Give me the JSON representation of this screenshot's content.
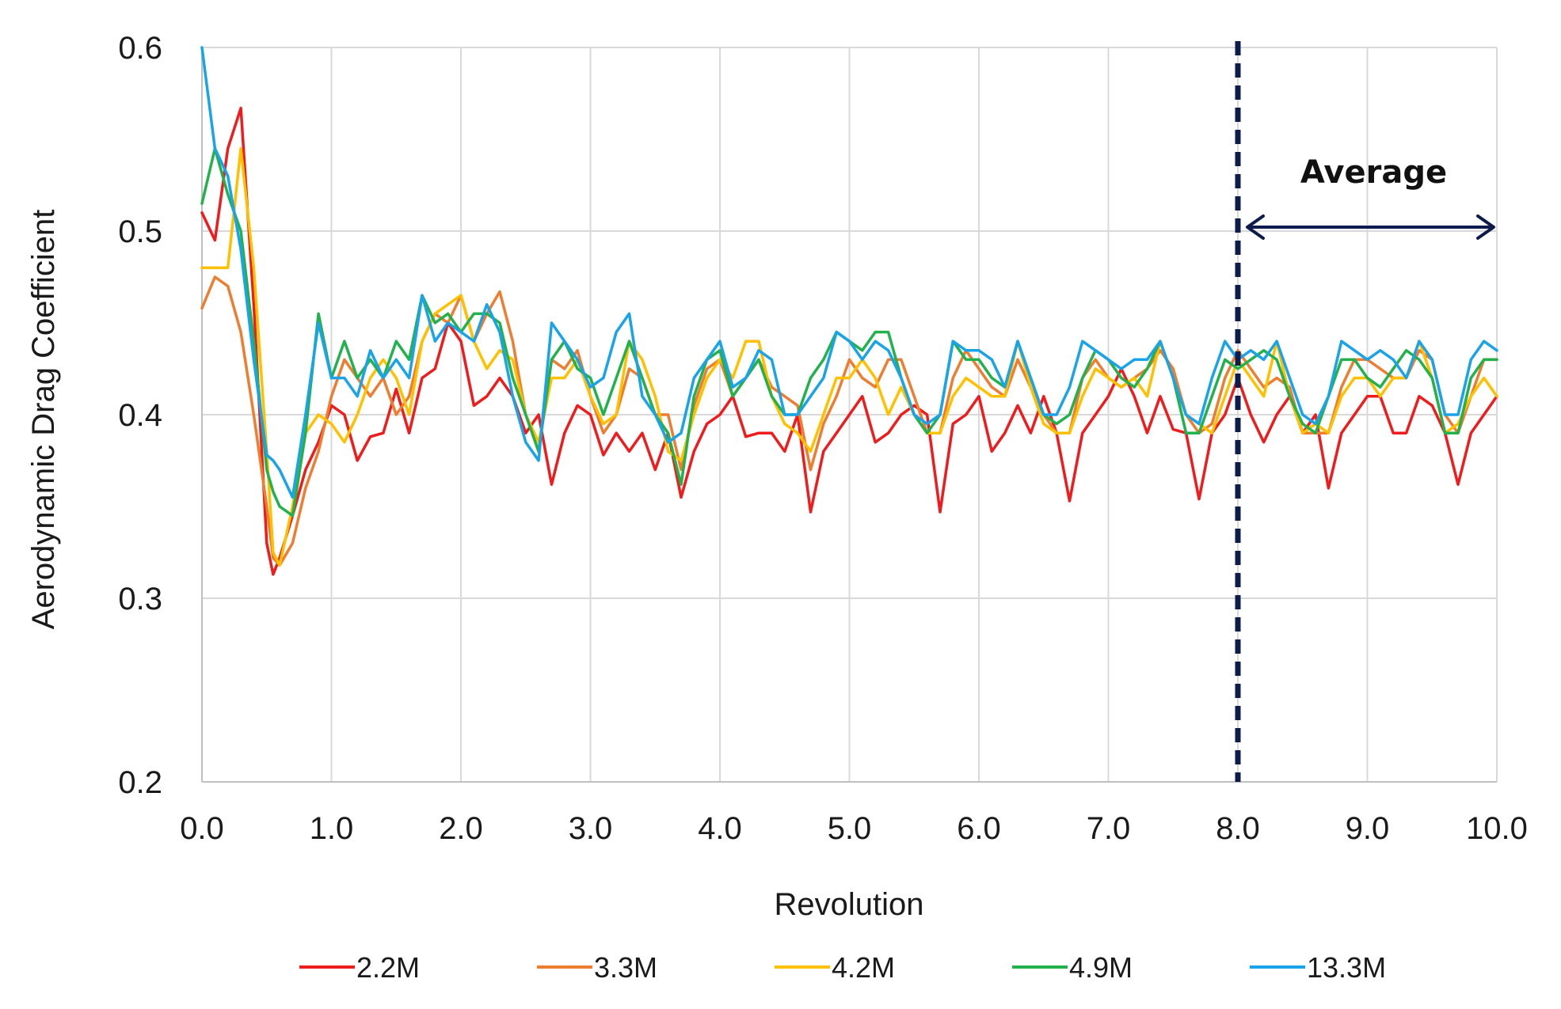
{
  "chart_data": {
    "type": "line",
    "title": "",
    "xlabel": "Revolution",
    "ylabel": "Aerodynamic Drag Coefficient",
    "xlim": [
      0,
      10
    ],
    "ylim": [
      0.2,
      0.6
    ],
    "x_ticks": [
      0,
      1,
      2,
      3,
      4,
      5,
      6,
      7,
      8,
      9,
      10
    ],
    "x_tick_labels": [
      "0.0",
      "1.0",
      "2.0",
      "3.0",
      "4.0",
      "5.0",
      "6.0",
      "7.0",
      "8.0",
      "9.0",
      "10.0"
    ],
    "y_ticks": [
      0.2,
      0.3,
      0.4,
      0.5,
      0.6
    ],
    "y_tick_labels": [
      "0.2",
      "0.3",
      "0.4",
      "0.5",
      "0.6"
    ],
    "grid": true,
    "legend_position": "bottom",
    "annotation": {
      "label": "Average",
      "vline_x": 8.0,
      "range": [
        8.0,
        10.0
      ],
      "color": "#0d1b4d"
    },
    "x": [
      0.0,
      0.1,
      0.2,
      0.3,
      0.4,
      0.5,
      0.55,
      0.6,
      0.7,
      0.8,
      0.9,
      1.0,
      1.1,
      1.2,
      1.3,
      1.4,
      1.5,
      1.6,
      1.7,
      1.8,
      1.9,
      2.0,
      2.1,
      2.2,
      2.3,
      2.4,
      2.5,
      2.6,
      2.7,
      2.8,
      2.9,
      3.0,
      3.1,
      3.2,
      3.3,
      3.4,
      3.5,
      3.6,
      3.7,
      3.8,
      3.9,
      4.0,
      4.1,
      4.2,
      4.3,
      4.4,
      4.5,
      4.6,
      4.7,
      4.8,
      4.9,
      5.0,
      5.1,
      5.2,
      5.3,
      5.4,
      5.5,
      5.6,
      5.7,
      5.8,
      5.9,
      6.0,
      6.1,
      6.2,
      6.3,
      6.4,
      6.5,
      6.6,
      6.7,
      6.8,
      6.9,
      7.0,
      7.1,
      7.2,
      7.3,
      7.4,
      7.5,
      7.6,
      7.7,
      7.8,
      7.9,
      8.0,
      8.1,
      8.2,
      8.3,
      8.4,
      8.5,
      8.6,
      8.7,
      8.8,
      8.9,
      9.0,
      9.1,
      9.2,
      9.3,
      9.4,
      9.5,
      9.6,
      9.7,
      9.8,
      9.9,
      10.0
    ],
    "series": [
      {
        "name": "2.2M",
        "color": "#ee1c1c",
        "values": [
          0.51,
          0.495,
          0.545,
          0.567,
          0.46,
          0.33,
          0.313,
          0.322,
          0.345,
          0.37,
          0.385,
          0.405,
          0.4,
          0.375,
          0.388,
          0.39,
          0.414,
          0.39,
          0.42,
          0.425,
          0.45,
          0.44,
          0.405,
          0.41,
          0.42,
          0.41,
          0.39,
          0.4,
          0.362,
          0.39,
          0.405,
          0.4,
          0.378,
          0.39,
          0.38,
          0.39,
          0.37,
          0.39,
          0.355,
          0.38,
          0.395,
          0.4,
          0.41,
          0.388,
          0.39,
          0.39,
          0.38,
          0.4,
          0.347,
          0.38,
          0.39,
          0.4,
          0.41,
          0.385,
          0.39,
          0.4,
          0.405,
          0.4,
          0.347,
          0.395,
          0.4,
          0.41,
          0.38,
          0.39,
          0.405,
          0.39,
          0.41,
          0.39,
          0.353,
          0.39,
          0.4,
          0.41,
          0.425,
          0.41,
          0.39,
          0.41,
          0.392,
          0.39,
          0.354,
          0.39,
          0.4,
          0.42,
          0.4,
          0.385,
          0.4,
          0.41,
          0.39,
          0.4,
          0.36,
          0.39,
          0.4,
          0.41,
          0.41,
          0.39,
          0.39,
          0.41,
          0.405,
          0.39,
          0.362,
          0.39,
          0.4,
          0.41
        ]
      },
      {
        "name": "3.3M",
        "color": "#ed7d31",
        "values": [
          0.458,
          0.475,
          0.47,
          0.445,
          0.4,
          0.35,
          0.322,
          0.318,
          0.33,
          0.36,
          0.38,
          0.41,
          0.43,
          0.42,
          0.41,
          0.42,
          0.4,
          0.41,
          0.44,
          0.455,
          0.45,
          0.465,
          0.44,
          0.455,
          0.467,
          0.44,
          0.4,
          0.38,
          0.43,
          0.425,
          0.435,
          0.41,
          0.39,
          0.4,
          0.425,
          0.42,
          0.4,
          0.4,
          0.37,
          0.405,
          0.425,
          0.43,
          0.41,
          0.42,
          0.43,
          0.415,
          0.41,
          0.405,
          0.37,
          0.395,
          0.41,
          0.43,
          0.42,
          0.415,
          0.43,
          0.43,
          0.41,
          0.39,
          0.39,
          0.42,
          0.435,
          0.425,
          0.415,
          0.41,
          0.43,
          0.415,
          0.4,
          0.39,
          0.39,
          0.42,
          0.43,
          0.42,
          0.415,
          0.42,
          0.425,
          0.435,
          0.425,
          0.4,
          0.39,
          0.395,
          0.42,
          0.435,
          0.425,
          0.415,
          0.42,
          0.415,
          0.39,
          0.39,
          0.39,
          0.415,
          0.43,
          0.43,
          0.425,
          0.42,
          0.42,
          0.435,
          0.43,
          0.4,
          0.39,
          0.41,
          0.43,
          0.43
        ]
      },
      {
        "name": "4.2M",
        "color": "#ffc000",
        "values": [
          0.48,
          0.48,
          0.48,
          0.545,
          0.48,
          0.38,
          0.325,
          0.318,
          0.35,
          0.39,
          0.4,
          0.395,
          0.385,
          0.4,
          0.42,
          0.43,
          0.42,
          0.4,
          0.44,
          0.455,
          0.46,
          0.465,
          0.44,
          0.425,
          0.435,
          0.43,
          0.4,
          0.385,
          0.42,
          0.42,
          0.43,
          0.41,
          0.395,
          0.4,
          0.44,
          0.43,
          0.41,
          0.38,
          0.375,
          0.4,
          0.42,
          0.43,
          0.42,
          0.44,
          0.44,
          0.41,
          0.395,
          0.39,
          0.38,
          0.4,
          0.42,
          0.42,
          0.43,
          0.42,
          0.4,
          0.415,
          0.4,
          0.39,
          0.39,
          0.41,
          0.42,
          0.415,
          0.41,
          0.41,
          0.44,
          0.415,
          0.395,
          0.39,
          0.39,
          0.41,
          0.425,
          0.42,
          0.415,
          0.42,
          0.41,
          0.44,
          0.42,
          0.4,
          0.395,
          0.39,
          0.41,
          0.43,
          0.42,
          0.41,
          0.44,
          0.41,
          0.39,
          0.395,
          0.39,
          0.41,
          0.42,
          0.42,
          0.41,
          0.42,
          0.42,
          0.44,
          0.42,
          0.39,
          0.395,
          0.41,
          0.42,
          0.41
        ]
      },
      {
        "name": "4.9M",
        "color": "#22b14c",
        "values": [
          0.515,
          0.545,
          0.52,
          0.5,
          0.44,
          0.37,
          0.358,
          0.35,
          0.345,
          0.39,
          0.455,
          0.42,
          0.44,
          0.42,
          0.43,
          0.42,
          0.44,
          0.43,
          0.465,
          0.45,
          0.455,
          0.445,
          0.455,
          0.455,
          0.45,
          0.42,
          0.4,
          0.38,
          0.43,
          0.44,
          0.425,
          0.42,
          0.4,
          0.42,
          0.44,
          0.42,
          0.4,
          0.39,
          0.362,
          0.41,
          0.43,
          0.435,
          0.41,
          0.42,
          0.43,
          0.41,
          0.4,
          0.4,
          0.42,
          0.43,
          0.445,
          0.44,
          0.435,
          0.445,
          0.445,
          0.42,
          0.4,
          0.39,
          0.4,
          0.44,
          0.43,
          0.43,
          0.42,
          0.415,
          0.44,
          0.42,
          0.4,
          0.395,
          0.4,
          0.42,
          0.435,
          0.43,
          0.42,
          0.415,
          0.425,
          0.44,
          0.42,
          0.39,
          0.39,
          0.41,
          0.43,
          0.425,
          0.43,
          0.435,
          0.43,
          0.41,
          0.395,
          0.39,
          0.41,
          0.43,
          0.43,
          0.42,
          0.415,
          0.425,
          0.435,
          0.43,
          0.42,
          0.39,
          0.39,
          0.42,
          0.43,
          0.43
        ]
      },
      {
        "name": "13.3M",
        "color": "#1aa3e8",
        "values": [
          0.6,
          0.545,
          0.53,
          0.49,
          0.43,
          0.378,
          0.375,
          0.37,
          0.355,
          0.4,
          0.45,
          0.42,
          0.42,
          0.41,
          0.435,
          0.42,
          0.43,
          0.42,
          0.465,
          0.44,
          0.45,
          0.445,
          0.44,
          0.46,
          0.445,
          0.41,
          0.385,
          0.375,
          0.45,
          0.44,
          0.43,
          0.415,
          0.42,
          0.445,
          0.455,
          0.41,
          0.4,
          0.385,
          0.39,
          0.42,
          0.43,
          0.44,
          0.415,
          0.42,
          0.435,
          0.43,
          0.4,
          0.4,
          0.41,
          0.42,
          0.445,
          0.44,
          0.43,
          0.44,
          0.435,
          0.42,
          0.4,
          0.395,
          0.4,
          0.44,
          0.435,
          0.435,
          0.43,
          0.415,
          0.44,
          0.42,
          0.4,
          0.4,
          0.415,
          0.44,
          0.435,
          0.43,
          0.425,
          0.43,
          0.43,
          0.44,
          0.42,
          0.4,
          0.395,
          0.42,
          0.44,
          0.43,
          0.435,
          0.43,
          0.44,
          0.42,
          0.4,
          0.395,
          0.41,
          0.44,
          0.435,
          0.43,
          0.435,
          0.43,
          0.42,
          0.44,
          0.43,
          0.4,
          0.4,
          0.43,
          0.44,
          0.435
        ]
      }
    ]
  }
}
